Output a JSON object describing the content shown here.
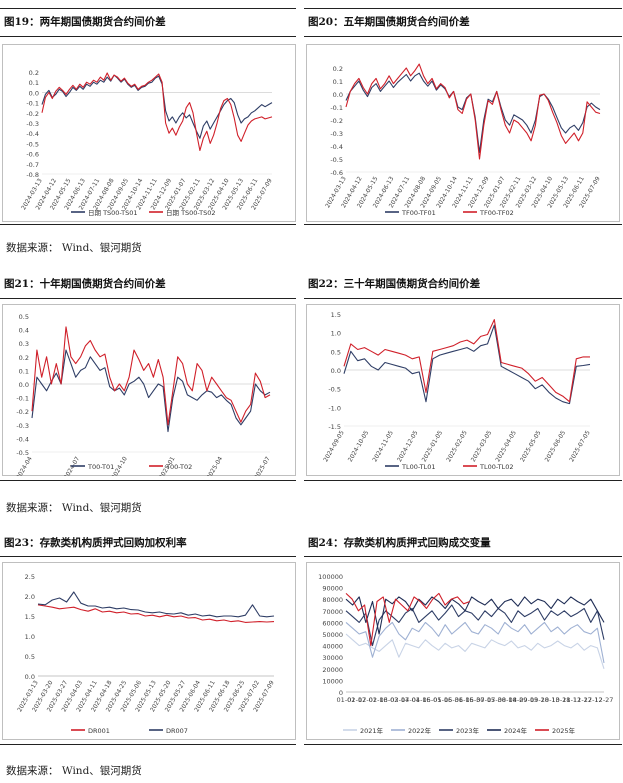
{
  "sections": [
    {
      "titles": [
        "图19：两年期国债期货合约间价差",
        "图20：五年期国债期货合约间价差"
      ]
    },
    {
      "titles": [
        "图21：十年期国债期货合约间价差",
        "图22：三十年期国债期货合约间价差"
      ]
    },
    {
      "titles": [
        "图23：存款类机构质押式回购加权利率",
        "图24：存款类机构质押式回购成交变量"
      ]
    }
  ],
  "source_text": "数据来源：   Wind、银河期货",
  "colors": {
    "navy": "#2F3E66",
    "red": "#D0202A",
    "light": "#9FB1D3",
    "gray_axis": "#d9d9d9"
  },
  "chart_data": [
    {
      "id": "fig19",
      "type": "line",
      "yticks": [
        "0.2",
        "0.1",
        "0.0",
        "-0.1",
        "-0.2",
        "-0.3",
        "-0.4",
        "-0.5",
        "-0.6",
        "-0.7",
        "-0.8"
      ],
      "ylim": [
        -0.8,
        0.2
      ],
      "xticks": [
        "2024-03-13",
        "2024-04-12",
        "2024-05-15",
        "2024-06-13",
        "2024-07-11",
        "2024-08-08",
        "2024-09-05",
        "2024-10-14",
        "2024-11-11",
        "2024-12-09",
        "2025-01-07",
        "2025-02-11",
        "2025-03-12",
        "2025-04-10",
        "2025-05-13",
        "2025-06-11",
        "2025-07-09"
      ],
      "series": [
        {
          "name": "日期 TS00-TS01",
          "color": "#2F3E66",
          "values": [
            -0.12,
            -0.02,
            0.02,
            -0.05,
            -0.02,
            0.03,
            0.01,
            -0.04,
            0.0,
            0.05,
            0.02,
            0.06,
            0.03,
            0.08,
            0.06,
            0.1,
            0.08,
            0.12,
            0.1,
            0.15,
            0.11,
            0.17,
            0.14,
            0.1,
            0.13,
            0.08,
            0.05,
            0.07,
            0.02,
            0.05,
            0.06,
            0.09,
            0.1,
            0.14,
            0.16,
            0.08,
            -0.18,
            -0.28,
            -0.24,
            -0.3,
            -0.24,
            -0.2,
            -0.25,
            -0.22,
            -0.3,
            -0.38,
            -0.45,
            -0.33,
            -0.28,
            -0.36,
            -0.3,
            -0.24,
            -0.18,
            -0.12,
            -0.08,
            -0.06,
            -0.1,
            -0.22,
            -0.3,
            -0.26,
            -0.24,
            -0.2,
            -0.18,
            -0.15,
            -0.12,
            -0.14,
            -0.12,
            -0.1
          ]
        },
        {
          "name": "日期 TS00-TS02",
          "color": "#D0202A",
          "values": [
            -0.2,
            -0.05,
            0.0,
            -0.06,
            0.01,
            0.05,
            0.02,
            -0.02,
            0.03,
            0.07,
            0.03,
            0.08,
            0.05,
            0.1,
            0.08,
            0.12,
            0.1,
            0.15,
            0.12,
            0.19,
            0.12,
            0.17,
            0.15,
            0.11,
            0.14,
            0.09,
            0.06,
            0.08,
            0.03,
            0.06,
            0.07,
            0.1,
            0.12,
            0.15,
            0.18,
            0.1,
            -0.3,
            -0.4,
            -0.35,
            -0.42,
            -0.34,
            -0.28,
            -0.15,
            -0.1,
            -0.2,
            -0.4,
            -0.57,
            -0.45,
            -0.38,
            -0.5,
            -0.42,
            -0.3,
            -0.16,
            -0.08,
            -0.06,
            -0.12,
            -0.25,
            -0.42,
            -0.48,
            -0.4,
            -0.32,
            -0.28,
            -0.26,
            -0.25,
            -0.24,
            -0.26,
            -0.25,
            -0.24
          ]
        }
      ]
    },
    {
      "id": "fig20",
      "type": "line",
      "yticks": [
        "0.2",
        "0.1",
        "0.0",
        "-0.1",
        "-0.2",
        "-0.3",
        "-0.4",
        "-0.5",
        "-0.6"
      ],
      "ylim": [
        -0.6,
        0.2
      ],
      "xticks": [
        "2024-03-13",
        "2024-04-12",
        "2024-05-15",
        "2024-06-13",
        "2024-07-11",
        "2024-08-08",
        "2024-09-05",
        "2024-10-14",
        "2024-11-11",
        "2024-12-09",
        "2025-01-07",
        "2025-02-11",
        "2025-03-12",
        "2025-04-10",
        "2025-05-13",
        "2025-06-11",
        "2025-07-09"
      ],
      "series": [
        {
          "name": "TF00-TF01",
          "color": "#2F3E66",
          "values": [
            -0.05,
            0.02,
            0.06,
            0.1,
            0.03,
            -0.02,
            0.05,
            0.08,
            0.02,
            0.06,
            0.1,
            0.05,
            0.09,
            0.12,
            0.15,
            0.1,
            0.14,
            0.16,
            0.1,
            0.06,
            0.1,
            0.03,
            0.07,
            0.04,
            -0.02,
            0.02,
            -0.1,
            -0.12,
            -0.03,
            0.0,
            -0.18,
            -0.45,
            -0.2,
            -0.04,
            -0.06,
            0.02,
            -0.1,
            -0.2,
            -0.24,
            -0.16,
            -0.18,
            -0.2,
            -0.24,
            -0.3,
            -0.2,
            -0.02,
            0.0,
            -0.04,
            -0.1,
            -0.18,
            -0.26,
            -0.3,
            -0.26,
            -0.24,
            -0.28,
            -0.22,
            -0.1,
            -0.07,
            -0.1,
            -0.12
          ]
        },
        {
          "name": "TF00-TF02",
          "color": "#D0202A",
          "values": [
            -0.1,
            0.02,
            0.08,
            0.12,
            0.05,
            0.0,
            0.08,
            0.12,
            0.04,
            0.08,
            0.14,
            0.08,
            0.12,
            0.16,
            0.2,
            0.14,
            0.18,
            0.23,
            0.14,
            0.08,
            0.12,
            0.04,
            0.08,
            0.05,
            -0.03,
            0.02,
            -0.12,
            -0.15,
            -0.04,
            0.0,
            -0.2,
            -0.5,
            -0.24,
            -0.05,
            -0.08,
            0.02,
            -0.12,
            -0.24,
            -0.3,
            -0.2,
            -0.22,
            -0.26,
            -0.3,
            -0.36,
            -0.24,
            -0.01,
            0.0,
            -0.05,
            -0.14,
            -0.22,
            -0.32,
            -0.38,
            -0.34,
            -0.3,
            -0.36,
            -0.3,
            -0.06,
            -0.1,
            -0.14,
            -0.15
          ]
        }
      ]
    },
    {
      "id": "fig21",
      "type": "line",
      "yticks": [
        "0.5",
        "0.4",
        "0.3",
        "0.2",
        "0.1",
        "0.0",
        "-0.1",
        "-0.2",
        "-0.3",
        "-0.4",
        "-0.5"
      ],
      "ylim": [
        -0.5,
        0.5
      ],
      "xticks": [
        "2024-04",
        "2024-07",
        "2024-10",
        "2025-01",
        "2025-04",
        "2025-07"
      ],
      "series": [
        {
          "name": "T00-T01",
          "color": "#2F3E66",
          "values": [
            -0.25,
            0.05,
            0.0,
            -0.05,
            0.02,
            0.08,
            0.0,
            0.25,
            0.15,
            0.05,
            0.1,
            0.12,
            0.2,
            0.15,
            0.1,
            0.12,
            -0.02,
            -0.05,
            -0.03,
            -0.08,
            0.0,
            0.02,
            0.05,
            0.0,
            -0.1,
            -0.05,
            0.0,
            -0.02,
            -0.35,
            -0.1,
            0.05,
            0.02,
            -0.08,
            -0.1,
            -0.12,
            -0.08,
            -0.05,
            -0.06,
            -0.1,
            -0.08,
            -0.12,
            -0.15,
            -0.25,
            -0.3,
            -0.25,
            -0.2,
            0.0,
            -0.05,
            -0.08,
            -0.06
          ]
        },
        {
          "name": "T00-T02",
          "color": "#D0202A",
          "values": [
            -0.2,
            0.25,
            0.05,
            0.2,
            0.0,
            0.15,
            0.0,
            0.42,
            0.2,
            0.15,
            0.2,
            0.28,
            0.32,
            0.25,
            0.2,
            0.22,
            0.05,
            -0.05,
            0.0,
            -0.05,
            0.05,
            0.25,
            0.18,
            0.1,
            0.15,
            0.05,
            0.18,
            0.05,
            -0.3,
            -0.05,
            0.2,
            0.15,
            0.0,
            -0.05,
            0.15,
            0.1,
            -0.05,
            0.05,
            0.0,
            -0.05,
            -0.1,
            -0.12,
            -0.2,
            -0.28,
            -0.2,
            -0.15,
            0.08,
            0.02,
            -0.1,
            -0.08
          ]
        }
      ]
    },
    {
      "id": "fig22",
      "type": "line",
      "yticks": [
        "1.5",
        "1.0",
        "0.5",
        "0.0",
        "-0.5",
        "-1.0",
        "-1.5"
      ],
      "ylim": [
        -1.5,
        1.5
      ],
      "xticks": [
        "2024-09-05",
        "2024-10-05",
        "2024-11-05",
        "2024-12-05",
        "2025-01-05",
        "2025-02-05",
        "2025-03-05",
        "2025-04-05",
        "2025-05-05",
        "2025-06-05",
        "2025-07-05"
      ],
      "series": [
        {
          "name": "TL00-TL01",
          "color": "#2F3E66",
          "values": [
            -0.1,
            0.5,
            0.25,
            0.3,
            0.1,
            0.0,
            0.2,
            0.15,
            0.1,
            0.05,
            -0.1,
            -0.05,
            -0.85,
            0.3,
            0.4,
            0.45,
            0.5,
            0.55,
            0.6,
            0.5,
            0.65,
            0.7,
            1.2,
            0.1,
            0.0,
            -0.1,
            -0.2,
            -0.3,
            -0.5,
            -0.4,
            -0.6,
            -0.75,
            -0.85,
            -0.9,
            0.1,
            0.12,
            0.15
          ]
        },
        {
          "name": "TL00-TL02",
          "color": "#D0202A",
          "values": [
            0.1,
            0.7,
            0.55,
            0.6,
            0.5,
            0.4,
            0.55,
            0.5,
            0.45,
            0.4,
            0.3,
            0.35,
            -0.6,
            0.5,
            0.55,
            0.6,
            0.65,
            0.75,
            0.8,
            0.7,
            0.9,
            0.95,
            1.35,
            0.2,
            0.15,
            0.1,
            0.05,
            -0.1,
            -0.3,
            -0.2,
            -0.4,
            -0.6,
            -0.7,
            -0.85,
            0.3,
            0.35,
            0.35
          ]
        }
      ]
    },
    {
      "id": "fig23",
      "type": "line",
      "yticks": [
        "2.5",
        "2.0",
        "1.5",
        "1.0",
        "0.5",
        "0.0"
      ],
      "ylim": [
        0,
        2.5
      ],
      "xticks": [
        "2025-03-13",
        "2025-03-20",
        "2025-03-27",
        "2025-04-03",
        "2025-04-11",
        "2025-04-18",
        "2025-04-25",
        "2025-05-06",
        "2025-05-13",
        "2025-05-20",
        "2025-05-27",
        "2025-06-04",
        "2025-06-11",
        "2025-06-18",
        "2025-06-25",
        "2025-07-02",
        "2025-07-09"
      ],
      "series": [
        {
          "name": "DR001",
          "color": "#D0202A",
          "values": [
            1.78,
            1.75,
            1.72,
            1.68,
            1.7,
            1.72,
            1.66,
            1.62,
            1.68,
            1.6,
            1.62,
            1.58,
            1.6,
            1.55,
            1.56,
            1.5,
            1.52,
            1.48,
            1.52,
            1.48,
            1.5,
            1.45,
            1.46,
            1.4,
            1.42,
            1.38,
            1.4,
            1.36,
            1.38,
            1.34,
            1.35,
            1.36,
            1.35,
            1.36
          ]
        },
        {
          "name": "DR007",
          "color": "#2F3E66",
          "values": [
            1.8,
            1.78,
            1.9,
            1.95,
            1.85,
            2.1,
            1.82,
            1.75,
            1.75,
            1.7,
            1.72,
            1.68,
            1.7,
            1.66,
            1.65,
            1.6,
            1.58,
            1.6,
            1.56,
            1.55,
            1.58,
            1.52,
            1.55,
            1.5,
            1.52,
            1.48,
            1.5,
            1.5,
            1.48,
            1.52,
            1.78,
            1.5,
            1.48,
            1.5
          ]
        }
      ]
    },
    {
      "id": "fig24",
      "type": "line",
      "yticks": [
        "100000",
        "90000",
        "80000",
        "70000",
        "60000",
        "50000",
        "40000",
        "30000",
        "20000",
        "10000",
        "0"
      ],
      "ylim": [
        0,
        100000
      ],
      "xticks": [
        "01-02",
        "01-17",
        "02-01",
        "02-16",
        "03-02",
        "03-17",
        "04-01",
        "04-16",
        "05-01",
        "05-16",
        "05-31",
        "06-15",
        "06-30",
        "07-15",
        "07-30",
        "08-14",
        "08-29",
        "09-13",
        "09-28",
        "10-13",
        "10-28",
        "11-12",
        "11-27",
        "12-12",
        "12-27"
      ],
      "series": [
        {
          "name": "2021年",
          "color": "#C8D3E6",
          "values": [
            50000,
            45000,
            40000,
            42000,
            38000,
            35000,
            40000,
            45000,
            30000,
            42000,
            40000,
            38000,
            45000,
            40000,
            36000,
            42000,
            38000,
            40000,
            35000,
            42000,
            40000,
            38000,
            45000,
            42000,
            40000,
            44000,
            38000,
            40000,
            36000,
            42000,
            38000,
            40000,
            44000,
            40000,
            38000,
            42000,
            36000,
            40000,
            38000,
            20000
          ]
        },
        {
          "name": "2022年",
          "color": "#9FB1D3",
          "values": [
            60000,
            55000,
            50000,
            52000,
            30000,
            48000,
            55000,
            60000,
            50000,
            45000,
            55000,
            52000,
            60000,
            55000,
            48000,
            58000,
            50000,
            55000,
            60000,
            52000,
            50000,
            58000,
            55000,
            50000,
            60000,
            55000,
            52000,
            58000,
            50000,
            55000,
            60000,
            52000,
            56000,
            50000,
            55000,
            58000,
            52000,
            50000,
            55000,
            25000
          ]
        },
        {
          "name": "2023年",
          "color": "#2F3E66",
          "values": [
            70000,
            65000,
            60000,
            68000,
            40000,
            62000,
            70000,
            65000,
            60000,
            68000,
            72000,
            60000,
            65000,
            70000,
            62000,
            68000,
            75000,
            65000,
            70000,
            68000,
            62000,
            70000,
            65000,
            72000,
            68000,
            60000,
            70000,
            65000,
            68000,
            72000,
            62000,
            70000,
            66000,
            70000,
            65000,
            68000,
            72000,
            60000,
            70000,
            45000
          ]
        },
        {
          "name": "2024年",
          "color": "#1F2D55",
          "values": [
            80000,
            75000,
            82000,
            60000,
            78000,
            50000,
            80000,
            76000,
            82000,
            78000,
            70000,
            80000,
            75000,
            82000,
            78000,
            72000,
            80000,
            76000,
            70000,
            82000,
            78000,
            75000,
            80000,
            72000,
            78000,
            80000,
            74000,
            82000,
            76000,
            80000,
            78000,
            72000,
            80000,
            76000,
            82000,
            78000,
            75000,
            80000,
            70000,
            60000
          ]
        },
        {
          "name": "2025年",
          "color": "#D0202A",
          "values": [
            85000,
            80000,
            70000,
            75000,
            40000,
            78000,
            82000,
            60000,
            80000,
            75000,
            70000,
            82000,
            78000,
            72000,
            80000,
            85000,
            75000,
            80000,
            82000,
            76000,
            78000
          ]
        }
      ]
    }
  ]
}
